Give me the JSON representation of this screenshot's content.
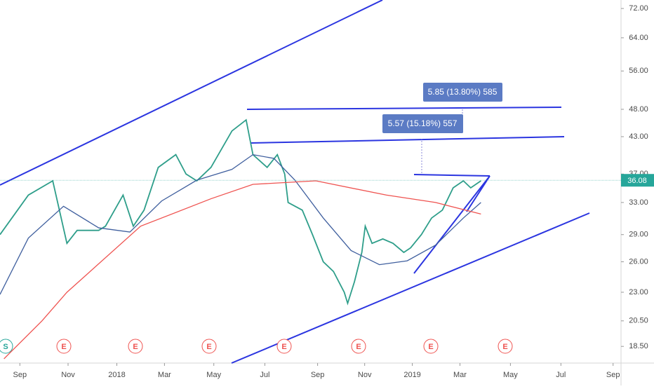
{
  "chart_data": {
    "type": "line",
    "log_scale": true,
    "last_price": 36.08,
    "last_price_color": "#26a69a",
    "xlim": [
      -3.5,
      106
    ],
    "ylim": [
      17.3,
      74.5
    ],
    "xticks": [
      {
        "value": 0,
        "label": "Sep"
      },
      {
        "value": 8.5,
        "label": "Nov"
      },
      {
        "value": 17.1,
        "label": "2018"
      },
      {
        "value": 25.5,
        "label": "Mar"
      },
      {
        "value": 34.2,
        "label": "May"
      },
      {
        "value": 43.2,
        "label": "Jul"
      },
      {
        "value": 52.5,
        "label": "Sep"
      },
      {
        "value": 60.8,
        "label": "Nov"
      },
      {
        "value": 69.2,
        "label": "2019"
      },
      {
        "value": 77.6,
        "label": "Mar"
      },
      {
        "value": 86.5,
        "label": "May"
      },
      {
        "value": 95.4,
        "label": "Jul"
      },
      {
        "value": 104.6,
        "label": "Sep"
      }
    ],
    "yticks": [
      {
        "value": 18.5,
        "label": "18.50"
      },
      {
        "value": 20.5,
        "label": "20.50"
      },
      {
        "value": 23,
        "label": "23.00"
      },
      {
        "value": 26,
        "label": "26.00"
      },
      {
        "value": 29,
        "label": "29.00"
      },
      {
        "value": 33,
        "label": "33.00"
      },
      {
        "value": 37,
        "label": "37.00"
      },
      {
        "value": 43,
        "label": "43.00"
      },
      {
        "value": 48,
        "label": "48.00"
      },
      {
        "value": 56,
        "label": "56.00"
      },
      {
        "value": 64,
        "label": "64.00"
      },
      {
        "value": 72,
        "label": "72.00"
      }
    ],
    "annotations": [
      "5.57 (15.18%) 557",
      "5.85 (13.80%) 585"
    ],
    "events": [
      "S",
      "E",
      "E",
      "E",
      "E",
      "E",
      "E",
      "E"
    ],
    "series": [
      {
        "color": "#2e9e8a",
        "x": [
          -3.5,
          1.5,
          5.8,
          8.3,
          10.1,
          13.9,
          15.1,
          18.2,
          20.0,
          21.9,
          24.4,
          27.5,
          29.3,
          31.2,
          33.7,
          37.4,
          39.9,
          41.1,
          43.6,
          45.4,
          46.7,
          47.3,
          49.8,
          51.6,
          53.5,
          55.3,
          57.2,
          57.8,
          59.0,
          60.3,
          60.9,
          62.1,
          64.0,
          65.8,
          67.7,
          68.9,
          70.8,
          72.6,
          74.5,
          76.4,
          78.2,
          79.5,
          81.3
        ],
        "values": [
          29,
          34,
          36,
          28,
          29.5,
          29.5,
          30,
          34,
          30,
          32,
          38,
          40,
          37,
          36,
          38,
          44,
          46,
          40,
          38,
          40,
          37,
          33,
          32,
          29,
          26,
          25,
          23,
          22,
          24,
          27,
          30,
          28,
          28.5,
          28,
          27,
          27.5,
          29,
          31,
          32,
          35,
          36,
          35,
          36
        ]
      },
      {
        "color": "#3f5f9e",
        "x": [
          -3.5,
          1.5,
          7.7,
          13.9,
          19.4,
          25.0,
          31.2,
          37.4,
          41.1,
          44.8,
          48.5,
          53.5,
          58.4,
          63.4,
          68.3,
          73.3,
          78.2,
          81.3
        ],
        "values": [
          22.8,
          28.6,
          32.5,
          29.8,
          29.3,
          33.2,
          36.1,
          37.7,
          40,
          39.4,
          36.1,
          31,
          27.2,
          25.7,
          26.1,
          27.8,
          31,
          33
        ]
      },
      {
        "color": "#ef5350",
        "x": [
          -2.8,
          3.9,
          8.3,
          21.3,
          33.7,
          41.1,
          52.2,
          64.6,
          73.3,
          81.3
        ],
        "values": [
          17.6,
          20.5,
          23,
          30,
          33.5,
          35.5,
          36,
          34,
          33,
          31.5
        ]
      }
    ]
  }
}
